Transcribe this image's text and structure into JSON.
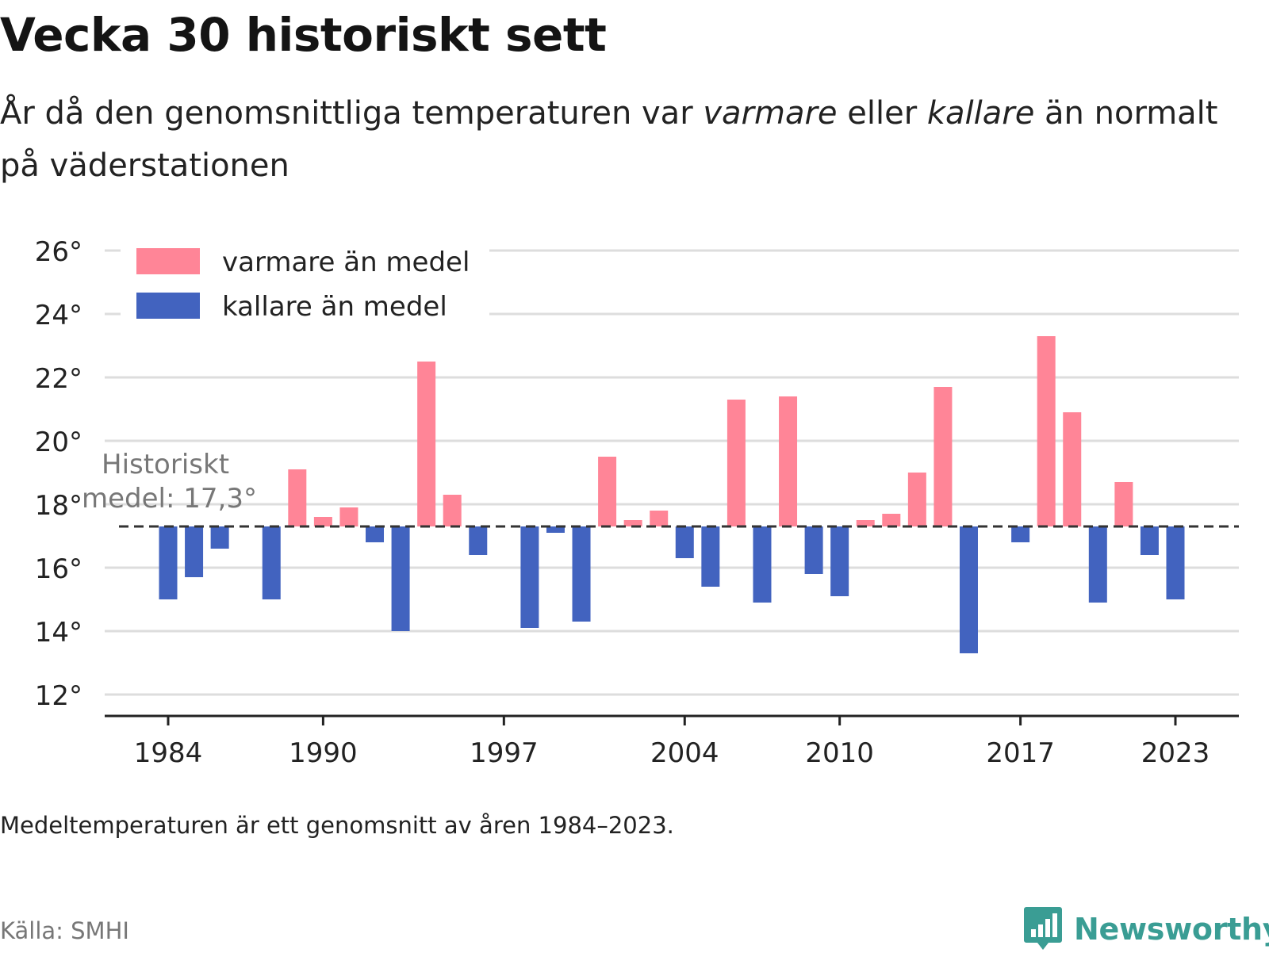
{
  "header": {
    "title": "Vecka 30 historiskt sett",
    "subtitle_part1": "År då den genomsnittliga temperaturen var ",
    "subtitle_em1": "varmare",
    "subtitle_part2": " eller ",
    "subtitle_em2": "kallare",
    "subtitle_part3": " än normalt på väderstationen"
  },
  "footer": {
    "note": "Medeltemperaturen är ett genomsnitt av åren 1984–2023.",
    "source": "Källa: SMHI",
    "brand": "Newsworthy"
  },
  "colors": {
    "warmer": "#ff8597",
    "colder": "#4263bf",
    "grid": "#dddddd",
    "axis": "#222222",
    "mean_line": "#333333",
    "annotation": "#777777",
    "brand": "#3a9d94"
  },
  "icons": {
    "brand_logo": "bar-chart-speech-bubble-icon"
  },
  "chart_data": {
    "type": "bar",
    "baseline": 17.3,
    "ylim": [
      12,
      26
    ],
    "yticks": [
      12,
      14,
      16,
      18,
      20,
      22,
      24,
      26
    ],
    "y_tick_suffix": "°",
    "x_tick_years": [
      1984,
      1990,
      1997,
      2004,
      2010,
      2017,
      2023
    ],
    "x_tick_labels": [
      "1984",
      "1990",
      "1997",
      "2004",
      "2010",
      "2017",
      "2023"
    ],
    "grid": true,
    "legend_position": "top-left",
    "legend": [
      {
        "key": "warmer",
        "label": "varmare än medel"
      },
      {
        "key": "colder",
        "label": "kallare än medel"
      }
    ],
    "annotation": {
      "line1": "Historiskt",
      "line2": "medel: 17,3°"
    },
    "years": [
      1984,
      1985,
      1986,
      1987,
      1988,
      1989,
      1990,
      1991,
      1992,
      1993,
      1994,
      1995,
      1996,
      1997,
      1998,
      1999,
      2000,
      2001,
      2002,
      2003,
      2004,
      2005,
      2006,
      2007,
      2008,
      2009,
      2010,
      2011,
      2012,
      2013,
      2014,
      2015,
      2016,
      2017,
      2018,
      2019,
      2020,
      2021,
      2022,
      2023
    ],
    "values": [
      15.0,
      15.7,
      16.6,
      null,
      15.0,
      19.1,
      17.6,
      17.9,
      16.8,
      14.0,
      22.5,
      18.3,
      16.4,
      null,
      14.1,
      17.1,
      14.3,
      19.5,
      17.5,
      17.8,
      16.3,
      15.4,
      21.3,
      14.9,
      21.4,
      15.8,
      15.1,
      17.5,
      17.7,
      19.0,
      21.7,
      13.3,
      null,
      16.8,
      23.3,
      20.9,
      14.9,
      18.7,
      16.4,
      15.0
    ]
  }
}
